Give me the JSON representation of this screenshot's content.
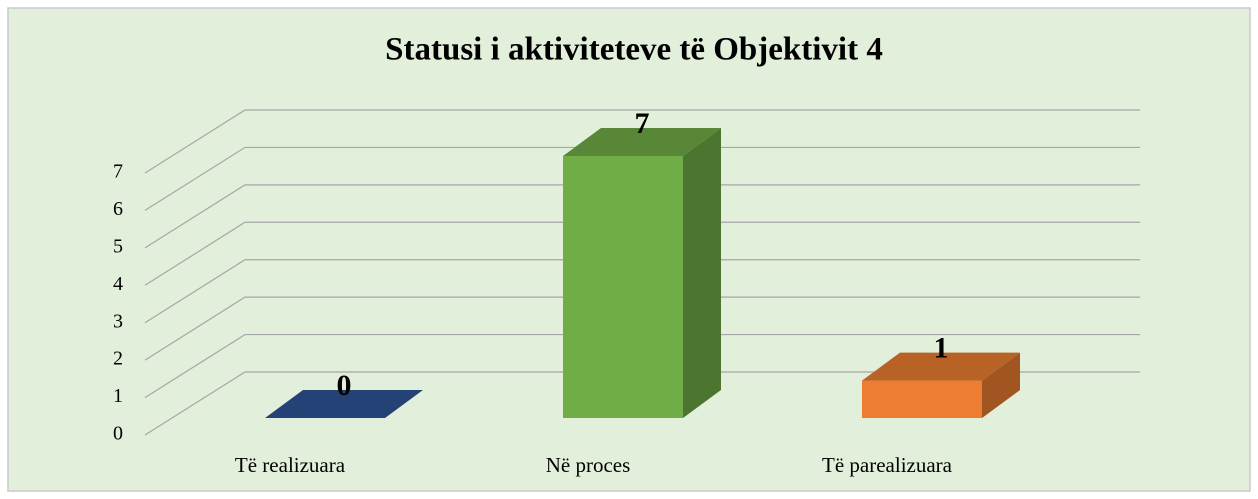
{
  "chart_data": {
    "type": "bar",
    "title": "Statusi i aktiviteteve të Objektivit 4",
    "categories": [
      "Të realizuara",
      "Në proces",
      "Të parealizuara"
    ],
    "values": [
      0,
      7,
      1
    ],
    "colors": [
      "#2f5597",
      "#70ad47",
      "#ed7d31"
    ],
    "ylim": [
      0,
      7
    ],
    "yticks": [
      0,
      1,
      2,
      3,
      4,
      5,
      6,
      7
    ],
    "grid": true
  }
}
